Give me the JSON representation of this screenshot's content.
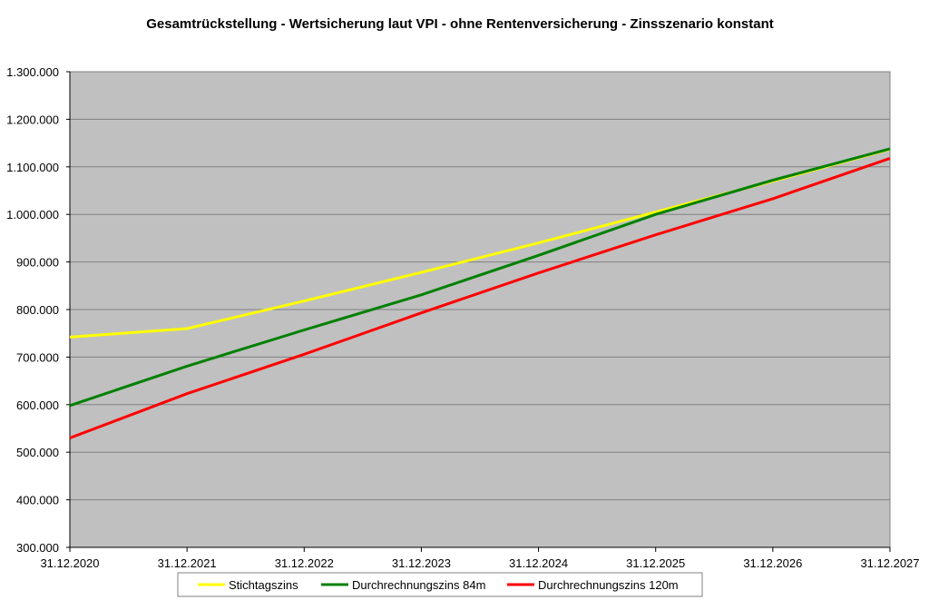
{
  "chart_data": {
    "type": "line",
    "title": "Gesamtrückstellung - Wertsicherung laut VPI - ohne Rentenversicherung - Zinsszenario konstant",
    "xlabel": "",
    "ylabel": "",
    "categories": [
      "31.12.2020",
      "31.12.2021",
      "31.12.2022",
      "31.12.2023",
      "31.12.2024",
      "31.12.2025",
      "31.12.2026",
      "31.12.2027"
    ],
    "ylim": [
      300000,
      1300000
    ],
    "yticks": [
      300000,
      400000,
      500000,
      600000,
      700000,
      800000,
      900000,
      1000000,
      1100000,
      1200000,
      1300000
    ],
    "ytick_labels": [
      "300.000",
      "400.000",
      "500.000",
      "600.000",
      "700.000",
      "800.000",
      "900.000",
      "1.000.000",
      "1.100.000",
      "1.200.000",
      "1.300.000"
    ],
    "grid": true,
    "plot_background": "#c0c0c0",
    "legend_position": "bottom",
    "series": [
      {
        "name": "Stichtagszins",
        "color": "#ffff00",
        "values": [
          742000,
          760000,
          818000,
          878000,
          940000,
          1005000,
          1070000,
          1137000
        ]
      },
      {
        "name": "Durchrechnungszins 84m",
        "color": "#008000",
        "values": [
          598000,
          681000,
          757000,
          831000,
          914000,
          1000000,
          1072000,
          1138000
        ]
      },
      {
        "name": "Durchrechnungszins 120m",
        "color": "#ff0000",
        "values": [
          530000,
          623000,
          706000,
          793000,
          877000,
          957000,
          1033000,
          1118000
        ]
      }
    ]
  }
}
